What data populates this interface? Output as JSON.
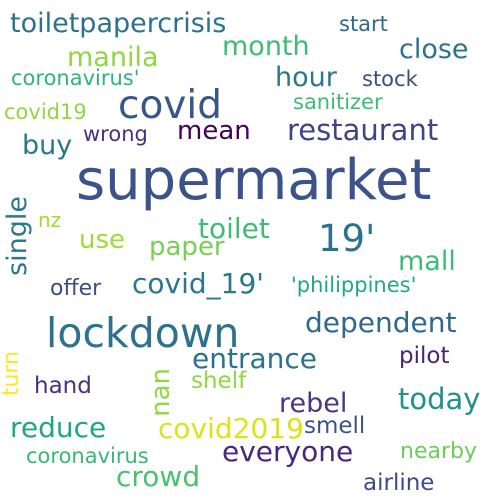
{
  "words": {
    "supermarket": {
      "text": "supermarket",
      "color": "#3b528b"
    },
    "lockdown": {
      "text": "lockdown",
      "color": "#2c728e"
    },
    "covid": {
      "text": "covid",
      "color": "#39568c"
    },
    "toiletpapercrisis": {
      "text": "toiletpapercrisis",
      "color": "#2c728e"
    },
    "n19": {
      "text": "19'",
      "color": "#2c728e"
    },
    "restaurant": {
      "text": "restaurant",
      "color": "#414487"
    },
    "covid_19": {
      "text": "covid_19'",
      "color": "#2a788e"
    },
    "dependent": {
      "text": "dependent",
      "color": "#31688e"
    },
    "entrance": {
      "text": "entrance",
      "color": "#2c728e"
    },
    "today": {
      "text": "today",
      "color": "#21918c"
    },
    "everyone": {
      "text": "everyone",
      "color": "#482878"
    },
    "covid2019": {
      "text": "covid2019",
      "color": "#dde318"
    },
    "rebel": {
      "text": "rebel",
      "color": "#443a83"
    },
    "reduce": {
      "text": "reduce",
      "color": "#21a685"
    },
    "toilet": {
      "text": "toilet",
      "color": "#3fbc73"
    },
    "paper": {
      "text": "paper",
      "color": "#75d054"
    },
    "mall": {
      "text": "mall",
      "color": "#3fbc73"
    },
    "month": {
      "text": "month",
      "color": "#3fbc73"
    },
    "manila": {
      "text": "manila",
      "color": "#90d743"
    },
    "close": {
      "text": "close",
      "color": "#2c728e"
    },
    "hour": {
      "text": "hour",
      "color": "#2a788e"
    },
    "mean": {
      "text": "mean",
      "color": "#440154"
    },
    "buy": {
      "text": "buy",
      "color": "#2a788e"
    },
    "single": {
      "text": "single",
      "color": "#2a788e"
    },
    "use": {
      "text": "use",
      "color": "#a0da39"
    },
    "crowd": {
      "text": "crowd",
      "color": "#4ac16d"
    },
    "nan": {
      "text": "nan",
      "color": "#90d743"
    },
    "turn": {
      "text": "turn",
      "color": "#fde725"
    },
    "smell": {
      "text": "smell",
      "color": "#3b528b"
    },
    "shelf": {
      "text": "shelf",
      "color": "#90d743"
    },
    "pilot": {
      "text": "pilot",
      "color": "#482475"
    },
    "hand": {
      "text": "hand",
      "color": "#46327e"
    },
    "airline": {
      "text": "airline",
      "color": "#3e4a89"
    },
    "nearby": {
      "text": "nearby",
      "color": "#6ccd5a"
    },
    "coronavirus": {
      "text": "coronavirus",
      "color": "#37b878"
    },
    "coronavirus_q": {
      "text": "coronavirus'",
      "color": "#2fb47c"
    },
    "philippines": {
      "text": "'philippines'",
      "color": "#22a884"
    },
    "sanitizer": {
      "text": "sanitizer",
      "color": "#3fbc73"
    },
    "stock": {
      "text": "stock",
      "color": "#3e4a89"
    },
    "start": {
      "text": "start",
      "color": "#31688e"
    },
    "covid19": {
      "text": "covid19",
      "color": "#90d743"
    },
    "wrong": {
      "text": "wrong",
      "color": "#46327e"
    },
    "offer": {
      "text": "offer",
      "color": "#3e4a89"
    },
    "nz": {
      "text": "nz",
      "color": "#a0da39"
    }
  }
}
